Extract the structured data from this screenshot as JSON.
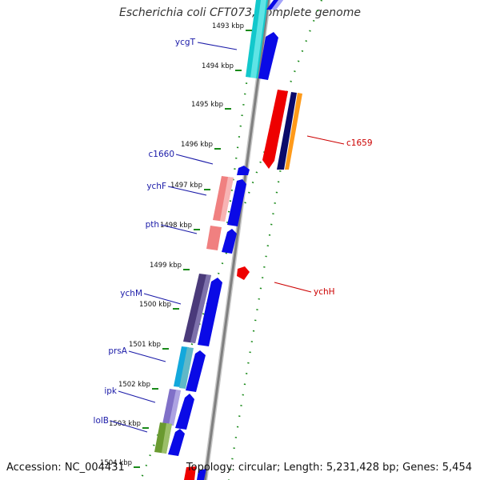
{
  "title": "Escherichia coli CFT073, complete genome",
  "footer": {
    "accession": "Accession: NC_004431",
    "summary": "Topology: circular; Length: 5,231,428 bp; Genes: 5,454"
  },
  "colors": {
    "backbone": "#8a8a8a",
    "ticks": "#1a8a1a",
    "forward_label": "#1a1aa8",
    "reverse_label": "#cc0000",
    "forward_cds": "#0a0ae6",
    "reverse_cds": "#ee0000"
  },
  "scale": {
    "unit": "kbp",
    "ticks": [
      "1493 kbp",
      "1494 kbp",
      "1495 kbp",
      "1496 kbp",
      "1497 kbp",
      "1498 kbp",
      "1499 kbp",
      "1500 kbp",
      "1501 kbp",
      "1502 kbp",
      "1503 kbp",
      "1504 kbp"
    ]
  },
  "genes": [
    {
      "name": "ycgT",
      "strand": "forward"
    },
    {
      "name": "c1660",
      "strand": "forward"
    },
    {
      "name": "ychF",
      "strand": "forward"
    },
    {
      "name": "pth",
      "strand": "forward"
    },
    {
      "name": "ychM",
      "strand": "forward"
    },
    {
      "name": "prsA",
      "strand": "forward"
    },
    {
      "name": "ipk",
      "strand": "forward"
    },
    {
      "name": "lolB",
      "strand": "forward"
    },
    {
      "name": "c1659",
      "strand": "reverse"
    },
    {
      "name": "ychH",
      "strand": "reverse"
    }
  ]
}
